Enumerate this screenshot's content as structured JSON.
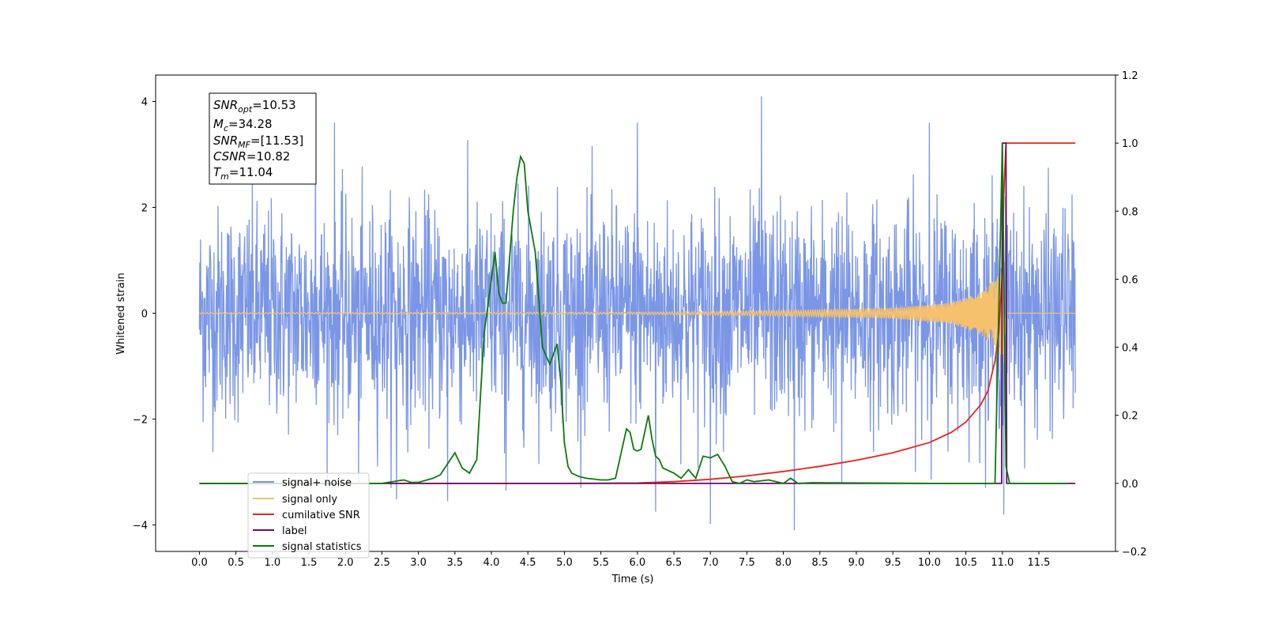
{
  "chart_data": {
    "type": "line",
    "xlabel": "Time (s)",
    "ylabel": "Whitened strain",
    "xlim": [
      -0.6,
      12.55
    ],
    "ylim": [
      -4.5,
      4.5
    ],
    "ylim_right": [
      -0.2,
      1.2
    ],
    "xticks": [
      "0.0",
      "0.5",
      "1.0",
      "1.5",
      "2.0",
      "2.5",
      "3.0",
      "3.5",
      "4.0",
      "4.5",
      "5.0",
      "5.5",
      "6.0",
      "6.5",
      "7.0",
      "7.5",
      "8.0",
      "8.5",
      "9.0",
      "9.5",
      "10.0",
      "10.5",
      "11.0",
      "11.5"
    ],
    "yticks_left": [
      "4",
      "2",
      "0",
      "−2",
      "−4"
    ],
    "yticks_right": [
      "1.2",
      "1.0",
      "0.8",
      "0.6",
      "0.4",
      "0.2",
      "0.0",
      "−0.2"
    ],
    "legend_position": "lower-left",
    "info_box": {
      "snr_opt": {
        "base": "SNR",
        "sub": "opt",
        "value": "=10.53"
      },
      "mc": {
        "base": "M",
        "sub": "c",
        "value": "=34.28"
      },
      "snr_mf": {
        "base": "SNR",
        "sub": "MF",
        "value": "=[11.53]"
      },
      "csnr": {
        "base": "CSNR",
        "value": "=10.82"
      },
      "tm": {
        "base": "T",
        "sub": "m",
        "value": "=11.04"
      }
    },
    "series": [
      {
        "name": "signal+ noise",
        "axis": "left",
        "color": "#7b96e6",
        "description_samples": {
          "x_range": [
            0.0,
            12.0
          ],
          "typical_range": [
            -2.0,
            2.2
          ],
          "peak_extremes": [
            {
              "x": 1.59,
              "y": 3.85
            },
            {
              "x": 1.85,
              "y": 3.6
            },
            {
              "x": 2.18,
              "y": -3.2
            },
            {
              "x": 2.7,
              "y": -3.52
            },
            {
              "x": 3.4,
              "y": -3.55
            },
            {
              "x": 4.2,
              "y": -3.35
            },
            {
              "x": 6.0,
              "y": 3.6
            },
            {
              "x": 6.25,
              "y": -3.75
            },
            {
              "x": 7.0,
              "y": -3.98
            },
            {
              "x": 7.7,
              "y": 4.1
            },
            {
              "x": 8.15,
              "y": -4.1
            },
            {
              "x": 8.8,
              "y": -3.2
            },
            {
              "x": 10.0,
              "y": 3.6
            },
            {
              "x": 11.02,
              "y": 3.45
            },
            {
              "x": 11.02,
              "y": -3.8
            }
          ]
        }
      },
      {
        "name": "signal only",
        "axis": "left",
        "color": "#f5c16c",
        "envelope": {
          "x": [
            0.0,
            6.0,
            8.0,
            9.5,
            10.3,
            10.7,
            10.9,
            11.0,
            11.02,
            11.05,
            12.0
          ],
          "amp": [
            0.01,
            0.02,
            0.05,
            0.1,
            0.2,
            0.4,
            0.65,
            1.0,
            1.2,
            0.0,
            0.0
          ]
        }
      },
      {
        "name": "cumilative SNR",
        "axis": "right",
        "color": "#e8231a",
        "x": [
          0.0,
          5.0,
          6.0,
          6.5,
          7.0,
          7.5,
          8.0,
          8.5,
          9.0,
          9.5,
          10.0,
          10.3,
          10.5,
          10.7,
          10.8,
          10.9,
          10.95,
          11.0,
          11.02,
          11.05,
          12.0
        ],
        "y": [
          0.0,
          0.0,
          0.001,
          0.005,
          0.012,
          0.022,
          0.035,
          0.05,
          0.068,
          0.09,
          0.12,
          0.15,
          0.18,
          0.23,
          0.27,
          0.36,
          0.44,
          0.62,
          0.85,
          1.0,
          1.0
        ]
      },
      {
        "name": "label",
        "axis": "right",
        "color": "#6b0a6b",
        "x": [
          0.0,
          10.99,
          11.0,
          11.05,
          11.06,
          12.0
        ],
        "y": [
          0.0,
          0.0,
          1.0,
          1.0,
          0.0,
          0.0
        ]
      },
      {
        "name": "signal statistics",
        "axis": "right",
        "color": "#0b7a0b",
        "x": [
          0.0,
          2.5,
          2.8,
          2.9,
          3.0,
          3.2,
          3.3,
          3.5,
          3.6,
          3.7,
          3.8,
          3.9,
          4.0,
          4.05,
          4.1,
          4.15,
          4.2,
          4.3,
          4.35,
          4.4,
          4.45,
          4.5,
          4.6,
          4.7,
          4.8,
          4.85,
          4.9,
          4.95,
          5.0,
          5.05,
          5.1,
          5.2,
          5.3,
          5.5,
          5.6,
          5.7,
          5.85,
          5.9,
          5.95,
          6.0,
          6.05,
          6.15,
          6.2,
          6.25,
          6.3,
          6.35,
          6.5,
          6.6,
          6.7,
          6.8,
          6.9,
          7.0,
          7.1,
          7.2,
          7.3,
          7.4,
          7.5,
          7.6,
          7.8,
          8.0,
          8.1,
          8.2,
          8.4,
          10.0,
          10.9,
          10.95,
          11.0,
          11.05,
          11.1,
          11.1,
          11.9
        ],
        "y": [
          0.0,
          0.0,
          0.01,
          0.003,
          0.003,
          0.015,
          0.025,
          0.09,
          0.045,
          0.03,
          0.07,
          0.44,
          0.6,
          0.68,
          0.56,
          0.53,
          0.53,
          0.8,
          0.9,
          0.96,
          0.94,
          0.8,
          0.68,
          0.4,
          0.35,
          0.38,
          0.41,
          0.3,
          0.12,
          0.05,
          0.03,
          0.02,
          0.015,
          0.01,
          0.01,
          0.015,
          0.16,
          0.15,
          0.1,
          0.095,
          0.1,
          0.2,
          0.13,
          0.08,
          0.07,
          0.045,
          0.03,
          0.015,
          0.04,
          0.015,
          0.08,
          0.075,
          0.085,
          0.05,
          0.005,
          0.0,
          0.01,
          0.005,
          0.01,
          0.0,
          0.015,
          0.0,
          0.002,
          0.0,
          0.0,
          0.5,
          1.0,
          0.05,
          0.0,
          0.0,
          0.0
        ]
      }
    ]
  },
  "legend": {
    "items": [
      {
        "label": "signal+ noise",
        "color": "#7b96e6"
      },
      {
        "label": "signal only",
        "color": "#f5c16c"
      },
      {
        "label": "cumilative SNR",
        "color": "#e8231a"
      },
      {
        "label": "label",
        "color": "#6b0a6b"
      },
      {
        "label": "signal statistics",
        "color": "#0b7a0b"
      }
    ]
  }
}
